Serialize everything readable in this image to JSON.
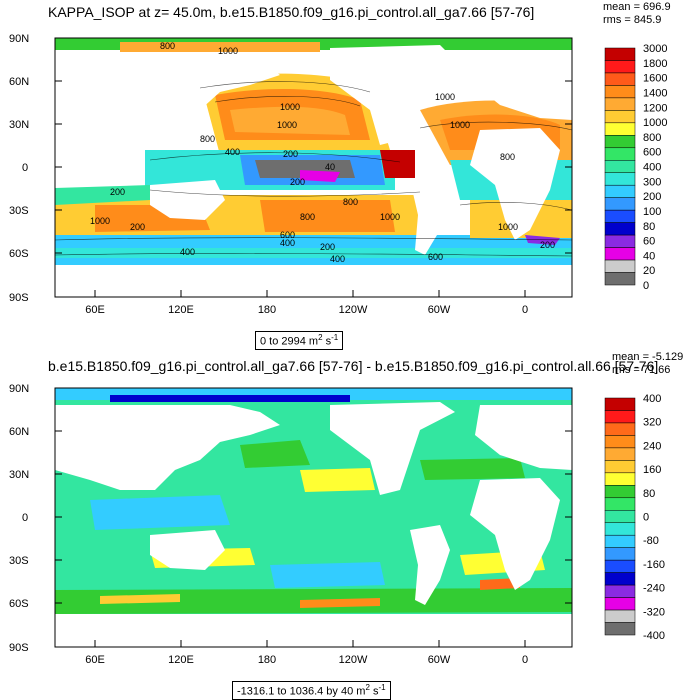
{
  "top_panel": {
    "title": "KAPPA_ISOP at z=  45.0m, b.e15.B1850.f09_g16.pi_control.all_ga7.66 [57-76]",
    "mean_label": "mean = 696.9",
    "rms_label": "rms = 845.9",
    "range_label": "0 to 2994 m",
    "range_sup": "2",
    "range_unit_tail": " s",
    "range_sup2": "-1",
    "colorbar_labels": [
      "3000",
      "1800",
      "1600",
      "1400",
      "1200",
      "1000",
      "800",
      "600",
      "400",
      "300",
      "200",
      "100",
      "80",
      "60",
      "40",
      "20",
      "0"
    ],
    "colorbar_colors": [
      "#c40000",
      "#ff1a1a",
      "#ff5a1a",
      "#ff8c1a",
      "#ffaa33",
      "#ffcc33",
      "#ffff33",
      "#33cc33",
      "#33e666",
      "#33e6a0",
      "#33e6d9",
      "#33ccff",
      "#3399ff",
      "#1a4dff",
      "#0000cc",
      "#8a2be2",
      "#e600e6",
      "#cccccc",
      "#6e6e6e"
    ],
    "contour_labels": [
      "800",
      "1000",
      "1000",
      "1000",
      "1000",
      "1000",
      "1000",
      "400",
      "200",
      "200",
      "40",
      "200",
      "800",
      "1000",
      "200",
      "800",
      "600",
      "400",
      "200",
      "400",
      "400",
      "600",
      "200",
      "1000",
      "800",
      "800"
    ]
  },
  "bottom_panel": {
    "title": "b.e15.B1850.f09_g16.pi_control.all_ga7.66 [57-76] - b.e15.B1850.f09_g16.pi_control.all.66 [57-76]",
    "mean_label": "mean = -5.129",
    "rms_label": "rms = 71.66",
    "range_label": "-1316.1 to 1036.4 by 40 m",
    "range_sup": "2",
    "range_unit_tail": " s",
    "range_sup2": "-1",
    "colorbar_labels": [
      "400",
      "320",
      "240",
      "160",
      "80",
      "0",
      "-80",
      "-160",
      "-240",
      "-320",
      "-400"
    ],
    "colorbar_colors": [
      "#c40000",
      "#ff1a1a",
      "#ff6a1a",
      "#ff8c1a",
      "#ffaa33",
      "#ffcc33",
      "#ffff33",
      "#33cc33",
      "#33e666",
      "#33e6a0",
      "#33e6d9",
      "#33ccff",
      "#3399ff",
      "#1a4dff",
      "#0000cc",
      "#8a2be2",
      "#e600e6",
      "#cccccc",
      "#6e6e6e"
    ]
  },
  "lat_labels": [
    "90N",
    "60N",
    "30N",
    "0",
    "30S",
    "60S",
    "90S"
  ],
  "lon_labels": [
    "60E",
    "120E",
    "180",
    "120W",
    "60W",
    "0"
  ]
}
